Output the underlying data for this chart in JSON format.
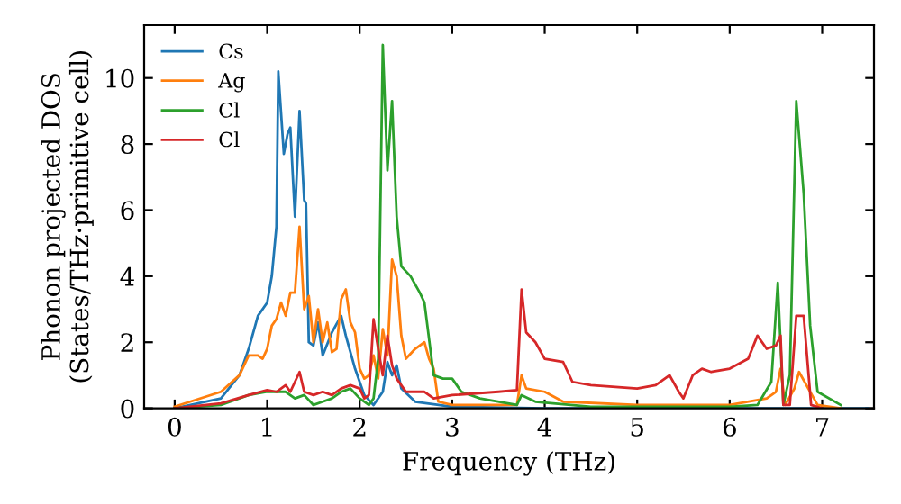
{
  "chart_data": {
    "type": "line",
    "xlabel": "Frequency (THz)",
    "ylabel": "Phonon projected DOS\n(States/THz·primitive cell)",
    "xlim": [
      -0.33,
      7.56
    ],
    "ylim": [
      0,
      11.6
    ],
    "xticks": [
      0,
      1,
      2,
      3,
      4,
      5,
      6,
      7
    ],
    "yticks": [
      0,
      2,
      4,
      6,
      8,
      10
    ],
    "legend": "top left",
    "grid": false,
    "marker": "none",
    "line_style": "solid",
    "series": [
      {
        "name": "Cs",
        "color": "#1f77b4",
        "x": [
          0,
          0.5,
          0.7,
          0.8,
          0.9,
          1.0,
          1.05,
          1.1,
          1.12,
          1.18,
          1.22,
          1.25,
          1.3,
          1.35,
          1.4,
          1.42,
          1.45,
          1.5,
          1.55,
          1.6,
          1.7,
          1.8,
          1.85,
          1.95,
          2.05,
          2.15,
          2.25,
          2.3,
          2.35,
          2.4,
          2.45,
          2.6,
          3.0,
          4.0,
          7.5
        ],
        "values": [
          0,
          0.3,
          1.0,
          1.8,
          2.8,
          3.2,
          4.0,
          5.5,
          10.2,
          7.7,
          8.3,
          8.5,
          5.8,
          9.0,
          6.3,
          6.2,
          2.0,
          1.9,
          2.6,
          1.6,
          2.3,
          2.8,
          2.2,
          1.2,
          0.4,
          0.1,
          0.5,
          1.4,
          1.0,
          1.3,
          0.6,
          0.2,
          0.05,
          0,
          0
        ]
      },
      {
        "name": "Ag",
        "color": "#ff7f0e",
        "x": [
          0,
          0.5,
          0.7,
          0.8,
          0.9,
          0.95,
          1.0,
          1.05,
          1.1,
          1.15,
          1.2,
          1.25,
          1.3,
          1.35,
          1.4,
          1.45,
          1.5,
          1.55,
          1.6,
          1.65,
          1.7,
          1.75,
          1.8,
          1.85,
          1.9,
          1.95,
          2.0,
          2.05,
          2.1,
          2.15,
          2.2,
          2.25,
          2.3,
          2.35,
          2.4,
          2.45,
          2.5,
          2.6,
          2.7,
          2.75,
          2.8,
          2.85,
          3.0,
          3.5,
          3.7,
          3.75,
          3.8,
          4.0,
          4.2,
          5.0,
          6.0,
          6.4,
          6.5,
          6.55,
          6.6,
          6.7,
          6.75,
          6.85,
          6.95,
          7.2
        ],
        "values": [
          0.05,
          0.5,
          1.0,
          1.6,
          1.6,
          1.5,
          1.8,
          2.5,
          2.7,
          3.2,
          2.8,
          3.5,
          3.5,
          5.5,
          3.0,
          3.4,
          2.0,
          3.0,
          2.0,
          2.6,
          1.7,
          1.8,
          3.3,
          3.6,
          2.6,
          2.3,
          1.2,
          0.9,
          1.0,
          1.6,
          0.9,
          2.4,
          1.6,
          4.5,
          4.0,
          2.2,
          1.5,
          1.8,
          2.0,
          1.5,
          1.2,
          0.2,
          0.1,
          0.1,
          0.1,
          1.0,
          0.6,
          0.5,
          0.2,
          0.1,
          0.1,
          0.3,
          0.5,
          1.2,
          0.1,
          0.6,
          1.1,
          0.6,
          0.1,
          0
        ]
      },
      {
        "name": "Cl",
        "color": "#2ca02c",
        "x": [
          0,
          0.5,
          0.8,
          1.0,
          1.2,
          1.3,
          1.4,
          1.5,
          1.6,
          1.7,
          1.8,
          1.9,
          2.0,
          2.1,
          2.15,
          2.2,
          2.25,
          2.3,
          2.35,
          2.4,
          2.45,
          2.55,
          2.65,
          2.7,
          2.8,
          2.9,
          3.0,
          3.1,
          3.3,
          3.7,
          3.75,
          3.9,
          4.5,
          6.0,
          6.3,
          6.45,
          6.52,
          6.58,
          6.65,
          6.72,
          6.8,
          6.87,
          6.95,
          7.2
        ],
        "values": [
          0,
          0.1,
          0.4,
          0.5,
          0.5,
          0.3,
          0.4,
          0.1,
          0.2,
          0.3,
          0.5,
          0.6,
          0.3,
          0.1,
          0.3,
          1.5,
          11.0,
          7.2,
          9.3,
          5.8,
          4.3,
          4.0,
          3.5,
          3.2,
          1.0,
          0.9,
          0.9,
          0.5,
          0.3,
          0.1,
          0.4,
          0.2,
          0.05,
          0.05,
          0.1,
          0.8,
          3.8,
          0.1,
          1.0,
          9.3,
          6.5,
          2.5,
          0.5,
          0.1
        ]
      },
      {
        "name": "Cl",
        "color": "#d62728",
        "x": [
          0,
          0.5,
          0.8,
          1.0,
          1.1,
          1.2,
          1.25,
          1.35,
          1.4,
          1.5,
          1.6,
          1.7,
          1.8,
          1.9,
          2.0,
          2.05,
          2.1,
          2.15,
          2.2,
          2.25,
          2.3,
          2.35,
          2.4,
          2.5,
          2.7,
          2.8,
          3.0,
          3.5,
          3.7,
          3.75,
          3.8,
          3.9,
          4.0,
          4.2,
          4.3,
          4.5,
          5.0,
          5.2,
          5.35,
          5.45,
          5.5,
          5.6,
          5.7,
          5.8,
          6.0,
          6.2,
          6.3,
          6.4,
          6.5,
          6.55,
          6.58,
          6.65,
          6.72,
          6.8,
          6.88,
          7.0
        ],
        "values": [
          0,
          0.15,
          0.4,
          0.55,
          0.5,
          0.7,
          0.5,
          1.1,
          0.5,
          0.4,
          0.5,
          0.4,
          0.6,
          0.7,
          0.6,
          0.3,
          0.4,
          2.7,
          1.8,
          1.0,
          2.2,
          1.3,
          0.9,
          0.5,
          0.5,
          0.3,
          0.4,
          0.5,
          0.55,
          3.6,
          2.3,
          2.0,
          1.5,
          1.4,
          0.8,
          0.7,
          0.6,
          0.7,
          1.0,
          0.5,
          0.3,
          1.0,
          1.2,
          1.1,
          1.2,
          1.5,
          2.2,
          1.8,
          1.9,
          2.2,
          0.1,
          0.1,
          2.8,
          2.8,
          0.1,
          0
        ]
      }
    ]
  }
}
